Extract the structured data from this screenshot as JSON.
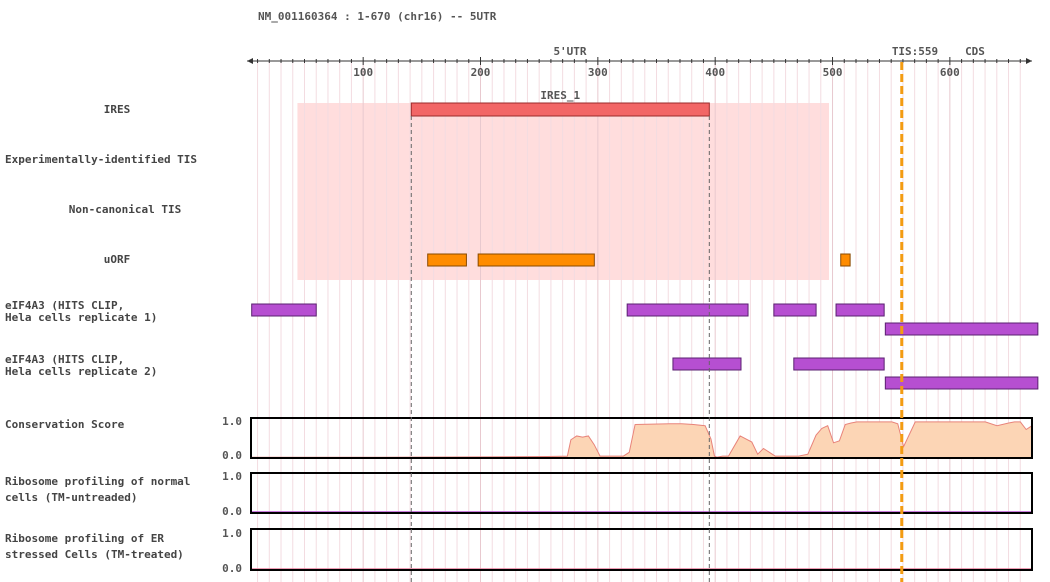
{
  "header": {
    "title": "NM_001160364 : 1-670 (chr16) -- 5UTR"
  },
  "axis": {
    "min": 1,
    "max": 670,
    "major_ticks": [
      100,
      200,
      300,
      400,
      500,
      600
    ],
    "minor_step": 10
  },
  "regions": {
    "utr5_label": "5'UTR",
    "utr5_color": "#cc0000",
    "tis_label": "TIS:559",
    "tis_position": 559,
    "tis_color": "#f39c12",
    "cds_label": "CDS",
    "cds_color": "#1e8c1e"
  },
  "highlight": {
    "start": 44,
    "end": 497,
    "color": "#ffdddd"
  },
  "tracks": {
    "ires": {
      "label": "IRES",
      "color": "#f26666",
      "features": [
        {
          "name": "IRES_1",
          "start": 141,
          "end": 395
        }
      ]
    },
    "exp_tis": {
      "label": "Experimentally-identified TIS",
      "features": []
    },
    "noncanonical_tis": {
      "label": "Non-canonical TIS",
      "features": []
    },
    "uorf": {
      "label": "uORF",
      "color": "#ff8c00",
      "features": [
        {
          "start": 155,
          "end": 188
        },
        {
          "start": 198,
          "end": 297
        },
        {
          "start": 507,
          "end": 515
        }
      ]
    },
    "eif4a3_rep1": {
      "label_line1": "eIF4A3 (HITS CLIP,",
      "label_line2": "Hela cells replicate 1)",
      "color": "#b64fd1",
      "features": [
        {
          "start": 5,
          "end": 60,
          "row": 0
        },
        {
          "start": 325,
          "end": 428,
          "row": 0
        },
        {
          "start": 450,
          "end": 486,
          "row": 0
        },
        {
          "start": 503,
          "end": 544,
          "row": 0
        },
        {
          "start": 545,
          "end": 675,
          "row": 1
        }
      ]
    },
    "eif4a3_rep2": {
      "label_line1": "eIF4A3 (HITS CLIP,",
      "label_line2": "Hela cells replicate 2)",
      "color": "#b64fd1",
      "features": [
        {
          "start": 364,
          "end": 422,
          "row": 0
        },
        {
          "start": 467,
          "end": 544,
          "row": 0
        },
        {
          "start": 545,
          "end": 675,
          "row": 1
        }
      ]
    },
    "conservation": {
      "label": "Conservation Score",
      "y_max_label": "1.0",
      "y_min_label": "0.0",
      "fill": "#fcd5b5",
      "stroke": "#e8837a",
      "x": [
        1,
        100,
        200,
        255,
        272,
        275,
        280,
        285,
        290,
        295,
        300,
        320,
        325,
        330,
        360,
        370,
        380,
        390,
        395,
        398,
        400,
        405,
        410,
        420,
        430,
        435,
        440,
        450,
        460,
        470,
        478,
        485,
        490,
        495,
        500,
        505,
        510,
        515,
        520,
        530,
        540,
        550,
        555,
        560,
        570,
        600,
        630,
        640,
        650,
        655,
        660,
        665,
        670
      ],
      "y": [
        0.02,
        0.02,
        0.03,
        0.04,
        0.05,
        0.48,
        0.58,
        0.55,
        0.58,
        0.35,
        0.05,
        0.05,
        0.15,
        0.88,
        0.9,
        0.9,
        0.88,
        0.85,
        0.5,
        0.05,
        0.02,
        0.05,
        0.05,
        0.58,
        0.42,
        0.1,
        0.25,
        0.05,
        0.05,
        0.05,
        0.1,
        0.6,
        0.78,
        0.85,
        0.4,
        0.45,
        0.88,
        0.92,
        0.95,
        0.95,
        0.95,
        0.95,
        0.9,
        0.3,
        0.95,
        0.95,
        0.95,
        0.85,
        0.92,
        0.95,
        0.95,
        0.75,
        0.85
      ]
    },
    "ribo_normal": {
      "label_line1": "Ribosome profiling of normal",
      "label_line2": "cells (TM-untreaded)",
      "y_max_label": "1.0",
      "y_min_label": "0.0",
      "line_color": "#b64fd1"
    },
    "ribo_er": {
      "label_line1": "Ribosome profiling of ER",
      "label_line2": "stressed Cells (TM-treated)",
      "y_max_label": "1.0",
      "y_min_label": "0.0",
      "line_color": "#e87b9b"
    }
  }
}
